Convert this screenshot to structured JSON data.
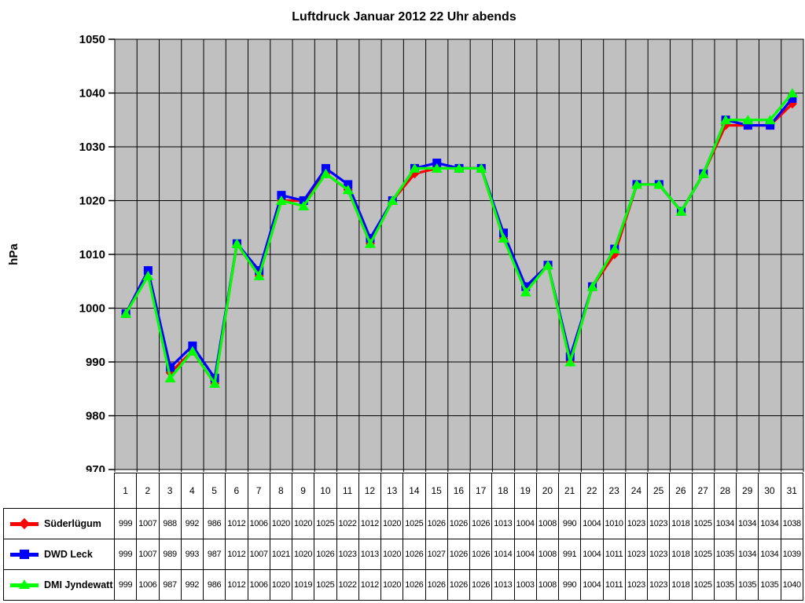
{
  "title": "Luftdruck Januar 2012 22 Uhr abends",
  "y_axis": {
    "label": "hPa",
    "min": 970,
    "max": 1050,
    "step": 10
  },
  "x_axis": {
    "categories": [
      1,
      2,
      3,
      4,
      5,
      6,
      7,
      8,
      9,
      10,
      11,
      12,
      13,
      14,
      15,
      16,
      17,
      18,
      19,
      20,
      21,
      22,
      23,
      24,
      25,
      26,
      27,
      28,
      29,
      30,
      31
    ]
  },
  "colors": {
    "plot_background": "#C0C0C0",
    "gridline": "#000000",
    "page_background": "#FFFFFF",
    "table_border": "#000000",
    "series": [
      "#FF0000",
      "#0000FF",
      "#00FF00"
    ]
  },
  "chart_data": {
    "type": "line",
    "title": "Luftdruck Januar 2012 22 Uhr abends",
    "xlabel": "",
    "ylabel": "hPa",
    "ylim": [
      970,
      1050
    ],
    "ytick_step": 10,
    "grid": true,
    "plot_background": "#C0C0C0",
    "legend_position": "bottom-left-table",
    "x": [
      1,
      2,
      3,
      4,
      5,
      6,
      7,
      8,
      9,
      10,
      11,
      12,
      13,
      14,
      15,
      16,
      17,
      18,
      19,
      20,
      21,
      22,
      23,
      24,
      25,
      26,
      27,
      28,
      29,
      30,
      31
    ],
    "series": [
      {
        "name": "Süderlügum",
        "color": "#FF0000",
        "marker": "diamond",
        "values": [
          999,
          1007,
          988,
          992,
          986,
          1012,
          1006,
          1020,
          1020,
          1025,
          1022,
          1012,
          1020,
          1025,
          1026,
          1026,
          1026,
          1013,
          1004,
          1008,
          990,
          1004,
          1010,
          1023,
          1023,
          1018,
          1025,
          1034,
          1034,
          1034,
          1038
        ]
      },
      {
        "name": "DWD Leck",
        "color": "#0000FF",
        "marker": "square",
        "values": [
          999,
          1007,
          989,
          993,
          987,
          1012,
          1007,
          1021,
          1020,
          1026,
          1023,
          1013,
          1020,
          1026,
          1027,
          1026,
          1026,
          1014,
          1004,
          1008,
          991,
          1004,
          1011,
          1023,
          1023,
          1018,
          1025,
          1035,
          1034,
          1034,
          1039
        ]
      },
      {
        "name": "DMI Jyndewatt",
        "color": "#00FF00",
        "marker": "triangle",
        "values": [
          999,
          1006,
          987,
          992,
          986,
          1012,
          1006,
          1020,
          1019,
          1025,
          1022,
          1012,
          1020,
          1026,
          1026,
          1026,
          1026,
          1013,
          1003,
          1008,
          990,
          1004,
          1011,
          1023,
          1023,
          1018,
          1025,
          1035,
          1035,
          1035,
          1040
        ]
      }
    ]
  }
}
